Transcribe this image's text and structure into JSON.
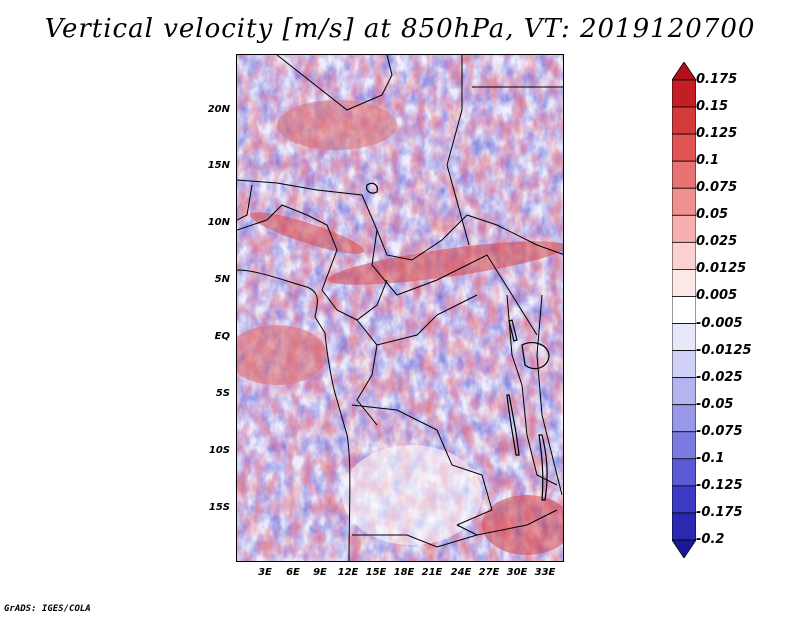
{
  "title": "Vertical velocity [m/s] at 850hPa, VT: 2019120700",
  "credit": "GrADS: IGES/COLA",
  "lat_labels": [
    "20N",
    "15N",
    "10N",
    "5N",
    "EQ",
    "5S",
    "10S",
    "15S"
  ],
  "lon_labels": [
    "3E",
    "6E",
    "9E",
    "12E",
    "15E",
    "18E",
    "21E",
    "24E",
    "27E",
    "30E",
    "33E"
  ],
  "colorbar": {
    "labels": [
      "0.175",
      "0.15",
      "0.125",
      "0.1",
      "0.075",
      "0.05",
      "0.025",
      "0.0125",
      "0.005",
      "-0.005",
      "-0.0125",
      "-0.025",
      "-0.05",
      "-0.075",
      "-0.1",
      "-0.125",
      "-0.175",
      "-0.2"
    ],
    "colors": [
      "#b0101c",
      "#c41e24",
      "#d33a3a",
      "#e05454",
      "#e97272",
      "#f09090",
      "#f6b0b0",
      "#fad0d0",
      "#fde8e8",
      "#ffffff",
      "#e8e8fb",
      "#d0d0f6",
      "#b4b4ef",
      "#9898e8",
      "#7a7ae0",
      "#5a5ad4",
      "#3a3ac4",
      "#2a2ab0",
      "#1a1a98"
    ]
  }
}
